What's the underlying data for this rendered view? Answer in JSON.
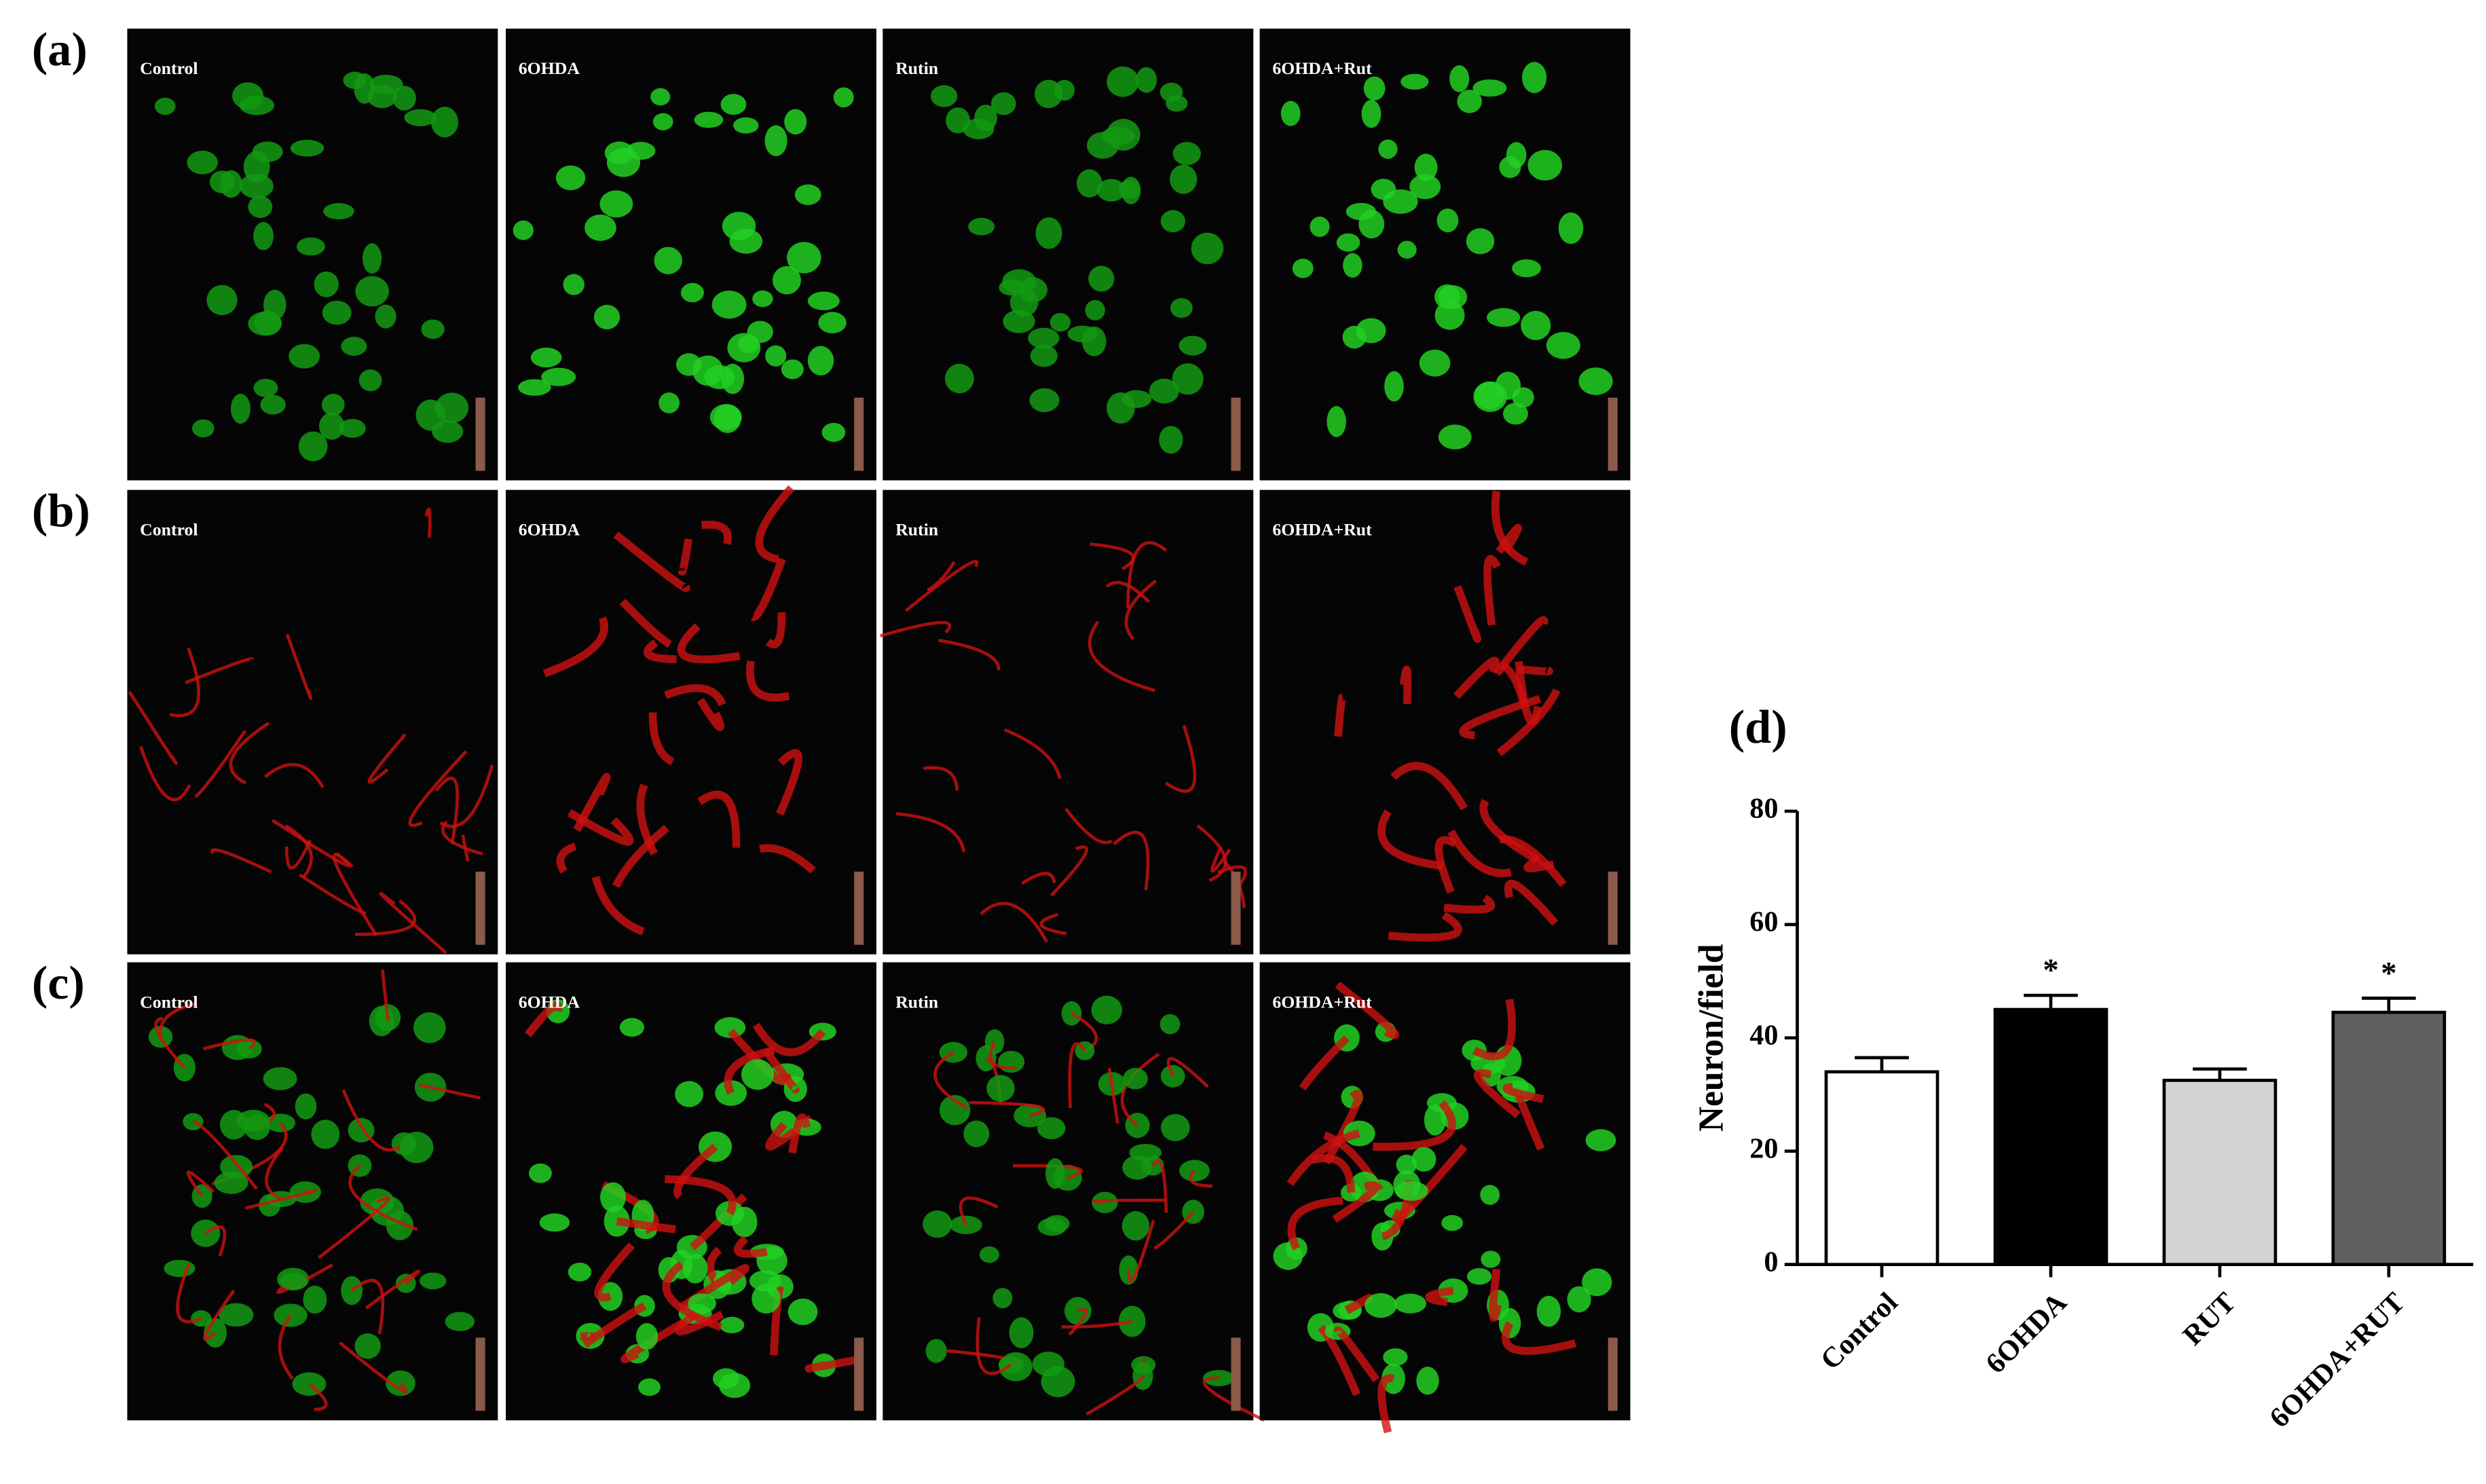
{
  "panels": {
    "row_labels": [
      "(a)",
      "(b)",
      "(c)"
    ],
    "image_labels": [
      [
        "Control",
        "6OHDA",
        "Rutin",
        "6OHDA+Rut"
      ],
      [
        "Control",
        "6OHDA",
        "Rutin",
        "6OHDA+Rut"
      ],
      [
        "Control",
        "6OHDA",
        "Rutin",
        "6OHDA+Rut"
      ]
    ]
  },
  "chart_data": {
    "type": "bar",
    "panel_label": "(d)",
    "y_label": "Neuron/field",
    "categories": [
      "Control",
      "6OHDA",
      "RUT",
      "6OHDA+RUT"
    ],
    "series": [
      {
        "values": [
          34,
          45,
          32.5,
          44.5
        ],
        "errors": [
          2.5,
          2.5,
          2,
          2.5
        ],
        "colors": [
          "#ffffff",
          "#000000",
          "#d3d3d3",
          "#606060"
        ],
        "significance": [
          null,
          "*",
          null,
          "*"
        ]
      }
    ],
    "ylim": [
      0,
      80
    ],
    "yticks": [
      0,
      20,
      40,
      60,
      80
    ],
    "grid": false
  }
}
